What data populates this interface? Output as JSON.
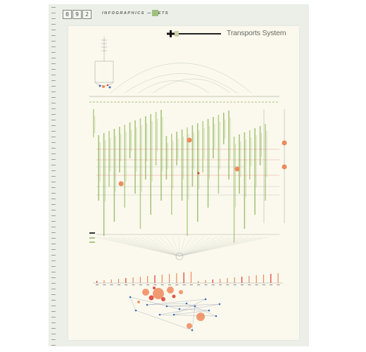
{
  "header": {
    "page_number_digits": [
      "0",
      "9",
      "2"
    ],
    "section_label": "INFOGRAPHICS — NETS",
    "accent_color": "#9ec07d"
  },
  "poster": {
    "title": "Transports System",
    "background": "#fbf9ed",
    "colors": {
      "green": "#a8c47f",
      "orange": "#ee8a5c",
      "red": "#d93a2a",
      "blue": "#3a70b8",
      "line": "#9aa0a0"
    }
  }
}
